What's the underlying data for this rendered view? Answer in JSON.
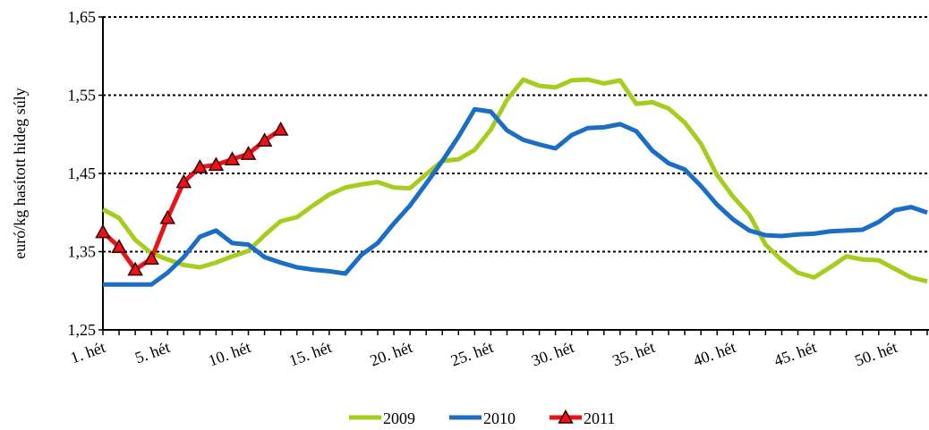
{
  "chart_data": {
    "type": "line",
    "y_label": "euró/kg hasított hideg súly",
    "categories": [
      "1. hét",
      null,
      null,
      null,
      "5. hét",
      null,
      null,
      null,
      null,
      "10. hét",
      null,
      null,
      null,
      null,
      "15. hét",
      null,
      null,
      null,
      null,
      "20. hét",
      null,
      null,
      null,
      null,
      "25. hét",
      null,
      null,
      null,
      null,
      "30. hét",
      null,
      null,
      null,
      null,
      "35. hét",
      null,
      null,
      null,
      null,
      "40. hét",
      null,
      null,
      null,
      null,
      "45. hét",
      null,
      null,
      null,
      null,
      "50. hét",
      null,
      null
    ],
    "series": [
      {
        "name": "2009",
        "color": "#a6cc1e",
        "marker": "none",
        "values": [
          1.404,
          1.393,
          1.365,
          1.348,
          1.34,
          1.333,
          1.33,
          1.336,
          1.344,
          1.351,
          1.371,
          1.389,
          1.394,
          1.409,
          1.423,
          1.432,
          1.436,
          1.439,
          1.432,
          1.431,
          1.449,
          1.466,
          1.468,
          1.48,
          1.506,
          1.544,
          1.57,
          1.562,
          1.56,
          1.569,
          1.57,
          1.565,
          1.569,
          1.539,
          1.541,
          1.533,
          1.515,
          1.488,
          1.448,
          1.42,
          1.397,
          1.359,
          1.339,
          1.323,
          1.317,
          1.33,
          1.344,
          1.34,
          1.339,
          1.328,
          1.317,
          1.312
        ]
      },
      {
        "name": "2010",
        "color": "#1a6fc4",
        "marker": "none",
        "values": [
          1.308,
          1.308,
          1.308,
          1.308,
          1.323,
          1.343,
          1.369,
          1.377,
          1.361,
          1.359,
          1.343,
          1.336,
          1.33,
          1.327,
          1.325,
          1.322,
          1.346,
          1.361,
          1.386,
          1.409,
          1.437,
          1.466,
          1.497,
          1.532,
          1.529,
          1.505,
          1.493,
          1.487,
          1.482,
          1.499,
          1.508,
          1.509,
          1.513,
          1.504,
          1.479,
          1.463,
          1.455,
          1.434,
          1.41,
          1.391,
          1.377,
          1.371,
          1.37,
          1.372,
          1.373,
          1.376,
          1.377,
          1.378,
          1.388,
          1.403,
          1.407,
          1.4
        ]
      },
      {
        "name": "2011",
        "color": "#e8131b",
        "marker": "triangle",
        "values": [
          1.375,
          1.356,
          1.327,
          1.341,
          1.393,
          1.439,
          1.458,
          1.461,
          1.468,
          1.475,
          1.492,
          1.506,
          null,
          null,
          null,
          null,
          null,
          null,
          null,
          null,
          null,
          null,
          null,
          null,
          null,
          null,
          null,
          null,
          null,
          null,
          null,
          null,
          null,
          null,
          null,
          null,
          null,
          null,
          null,
          null,
          null,
          null,
          null,
          null,
          null,
          null,
          null,
          null,
          null,
          null,
          null,
          null
        ]
      }
    ],
    "ylim": [
      1.25,
      1.65
    ],
    "yticks": [
      {
        "value": 1.25,
        "label": "1,25"
      },
      {
        "value": 1.35,
        "label": "1,35"
      },
      {
        "value": 1.45,
        "label": "1,45"
      },
      {
        "value": 1.55,
        "label": "1,55"
      },
      {
        "value": 1.65,
        "label": "1,65"
      }
    ],
    "grid": true,
    "legend": "bottom"
  }
}
